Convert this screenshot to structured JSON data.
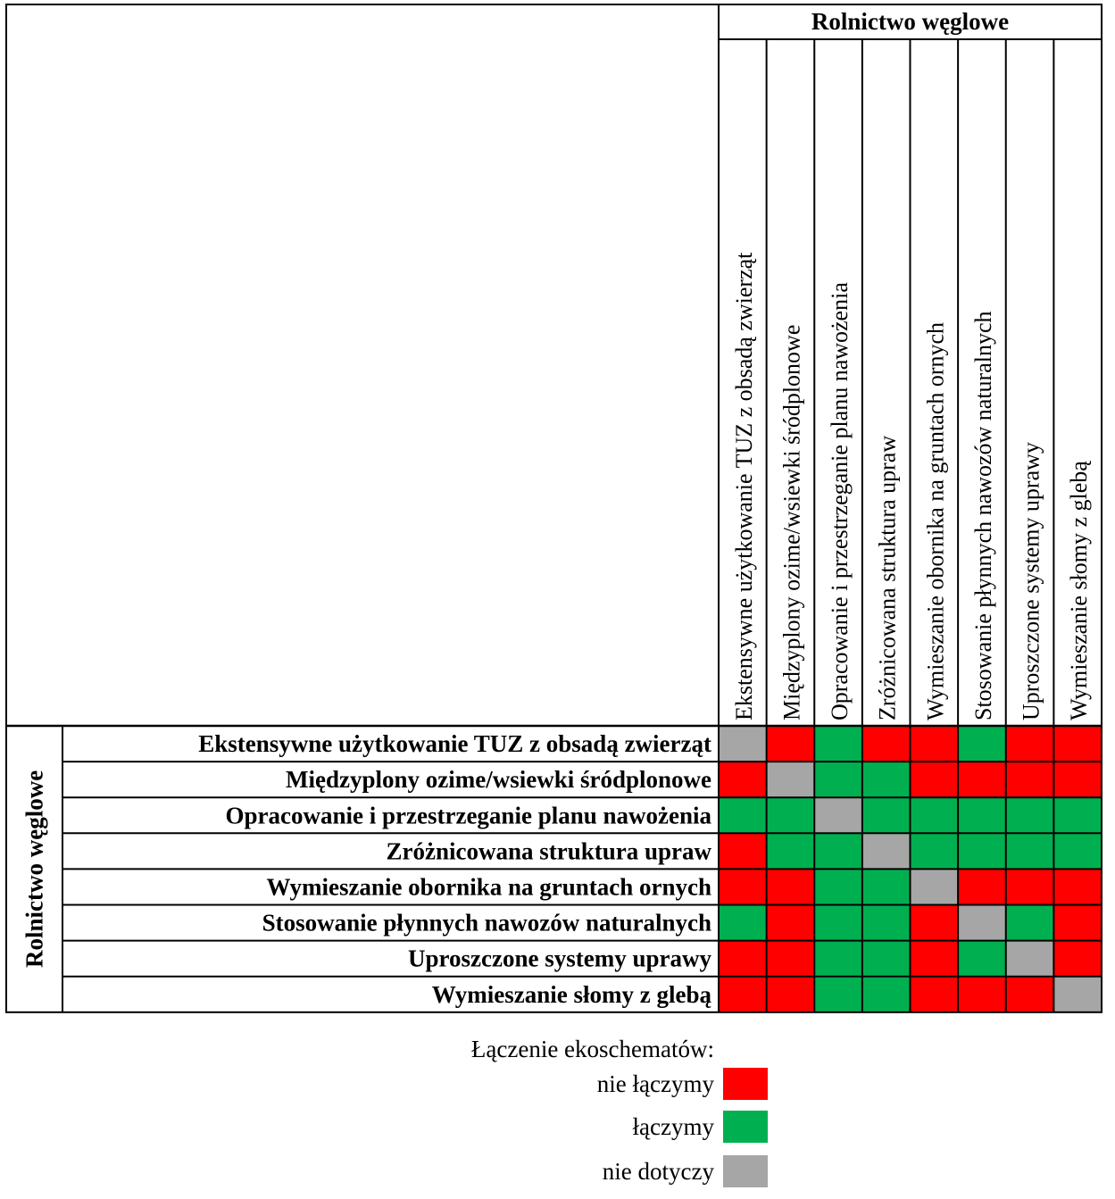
{
  "chart_data": {
    "type": "heatmap",
    "group_label_top": "Rolnictwo węglowe",
    "group_label_left": "Rolnictwo węglowe",
    "columns": [
      "Ekstensywne użytkowanie TUZ z obsadą zwierząt",
      "Międzyplony ozime/wsiewki śródplonowe",
      "Opracowanie i przestrzeganie planu nawożenia",
      "Zróżnicowana struktura upraw",
      "Wymieszanie obornika na gruntach ornych",
      "Stosowanie płynnych nawozów naturalnych",
      "Uproszczone systemy uprawy",
      "Wymieszanie słomy z glebą"
    ],
    "rows": [
      "Ekstensywne użytkowanie TUZ z obsadą zwierząt",
      "Międzyplony ozime/wsiewki śródplonowe",
      "Opracowanie i przestrzeganie planu nawożenia",
      "Zróżnicowana struktura upraw",
      "Wymieszanie obornika na gruntach ornych",
      "Stosowanie płynnych nawozów naturalnych",
      "Uproszczone systemy uprawy",
      "Wymieszanie słomy z glebą"
    ],
    "cells": [
      [
        "nie dotyczy",
        "nie łączymy",
        "łączymy",
        "nie łączymy",
        "nie łączymy",
        "łączymy",
        "nie łączymy",
        "nie łączymy"
      ],
      [
        "nie łączymy",
        "nie dotyczy",
        "łączymy",
        "łączymy",
        "nie łączymy",
        "nie łączymy",
        "nie łączymy",
        "nie łączymy"
      ],
      [
        "łączymy",
        "łączymy",
        "nie dotyczy",
        "łączymy",
        "łączymy",
        "łączymy",
        "łączymy",
        "łączymy"
      ],
      [
        "nie łączymy",
        "łączymy",
        "łączymy",
        "nie dotyczy",
        "łączymy",
        "łączymy",
        "łączymy",
        "łączymy"
      ],
      [
        "nie łączymy",
        "nie łączymy",
        "łączymy",
        "łączymy",
        "nie dotyczy",
        "nie łączymy",
        "nie łączymy",
        "nie łączymy"
      ],
      [
        "łączymy",
        "nie łączymy",
        "łączymy",
        "łączymy",
        "nie łączymy",
        "nie dotyczy",
        "łączymy",
        "nie łączymy"
      ],
      [
        "nie łączymy",
        "nie łączymy",
        "łączymy",
        "łączymy",
        "nie łączymy",
        "łączymy",
        "nie dotyczy",
        "nie łączymy"
      ],
      [
        "nie łączymy",
        "nie łączymy",
        "łączymy",
        "łączymy",
        "nie łączymy",
        "nie łączymy",
        "nie łączymy",
        "nie dotyczy"
      ]
    ],
    "legend": {
      "title": "Łączenie ekoschematów:",
      "items": [
        {
          "label": "nie łączymy",
          "color": "#ff0000"
        },
        {
          "label": "łączymy",
          "color": "#00b050"
        },
        {
          "label": "nie dotyczy",
          "color": "#a6a6a6"
        }
      ]
    }
  }
}
